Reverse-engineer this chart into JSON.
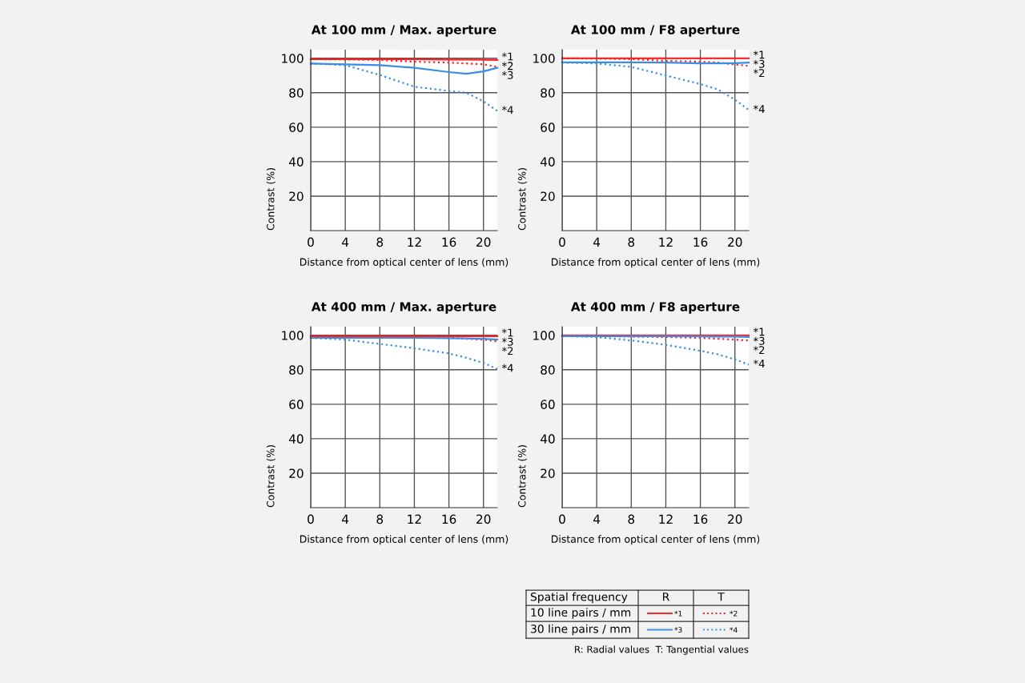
{
  "chart_data": [
    {
      "type": "line",
      "title": "At 100 mm / Max. aperture",
      "xlabel": "Distance from optical center of lens (mm)",
      "ylabel": "Contrast (%)",
      "xlim": [
        0,
        21.6
      ],
      "ylim": [
        0,
        105
      ],
      "xticks": [
        0,
        4,
        8,
        12,
        16,
        20
      ],
      "yticks": [
        20,
        40,
        60,
        80,
        100
      ],
      "grid": true,
      "legend": "bottom right",
      "x": [
        0,
        4,
        8,
        12,
        16,
        18,
        20,
        21.6
      ],
      "series": [
        {
          "name": "*1",
          "color": "#ff1f1f",
          "line_style": "solid",
          "values": [
            99.5,
            99.5,
            99.5,
            99.5,
            99.3,
            99.2,
            99.1,
            99
          ]
        },
        {
          "name": "*2",
          "color": "#ff1f1f",
          "line_style": "dotted",
          "values": [
            99.5,
            99.3,
            99,
            98,
            97.5,
            97,
            96.5,
            95
          ]
        },
        {
          "name": "*3",
          "color": "#3a8ee6",
          "line_style": "solid",
          "values": [
            96.9,
            96.5,
            96,
            94.5,
            92,
            91,
            92.4,
            94.5
          ]
        },
        {
          "name": "*4",
          "color": "#3a8ee6",
          "line_style": "dotted",
          "values": [
            97,
            96,
            90.3,
            83.5,
            81,
            80,
            75,
            69.5
          ]
        }
      ]
    },
    {
      "type": "line",
      "title": "At 100 mm / F8 aperture",
      "xlabel": "Distance from optical center of lens (mm)",
      "ylabel": "Contrast (%)",
      "xlim": [
        0,
        21.6
      ],
      "ylim": [
        0,
        105
      ],
      "xticks": [
        0,
        4,
        8,
        12,
        16,
        20
      ],
      "yticks": [
        20,
        40,
        60,
        80,
        100
      ],
      "grid": true,
      "legend": false,
      "x": [
        0,
        4,
        8,
        12,
        16,
        18,
        20,
        21.6
      ],
      "series": [
        {
          "name": "*1",
          "color": "#ff1f1f",
          "line_style": "solid",
          "values": [
            100,
            100,
            100,
            100,
            100,
            100,
            100,
            100
          ]
        },
        {
          "name": "*2",
          "color": "#ff1f1f",
          "line_style": "dotted",
          "values": [
            100,
            99.8,
            99.5,
            98.5,
            98,
            97.5,
            96.5,
            95.5
          ]
        },
        {
          "name": "*3",
          "color": "#3a8ee6",
          "line_style": "solid",
          "values": [
            97.6,
            97.6,
            97.6,
            97.5,
            97,
            97,
            97.2,
            97.5
          ]
        },
        {
          "name": "*4",
          "color": "#3a8ee6",
          "line_style": "dotted",
          "values": [
            97.5,
            97,
            95,
            90,
            85,
            82,
            76,
            70
          ]
        }
      ]
    },
    {
      "type": "line",
      "title": "At 400 mm / Max. aperture",
      "xlabel": "Distance from optical center of lens (mm)",
      "ylabel": "Contrast (%)",
      "xlim": [
        0,
        21.6
      ],
      "ylim": [
        0,
        105
      ],
      "xticks": [
        0,
        4,
        8,
        12,
        16,
        20
      ],
      "yticks": [
        20,
        40,
        60,
        80,
        100
      ],
      "grid": true,
      "legend": false,
      "x": [
        0,
        4,
        8,
        12,
        16,
        18,
        20,
        21.6
      ],
      "series": [
        {
          "name": "*1",
          "color": "#ff1f1f",
          "line_style": "solid",
          "values": [
            99.5,
            99.5,
            99.5,
            99.5,
            99.5,
            99.5,
            99.5,
            99.5
          ]
        },
        {
          "name": "*2",
          "color": "#ff1f1f",
          "line_style": "dotted",
          "values": [
            99,
            99,
            99,
            99,
            98.5,
            98,
            97.5,
            96.5
          ]
        },
        {
          "name": "*3",
          "color": "#3a8ee6",
          "line_style": "solid",
          "values": [
            98.5,
            98.5,
            98.5,
            98.5,
            98.3,
            98.2,
            98,
            97.5
          ]
        },
        {
          "name": "*4",
          "color": "#3a8ee6",
          "line_style": "dotted",
          "values": [
            98.5,
            97.5,
            95,
            92.5,
            89.5,
            87,
            84,
            80.5
          ]
        }
      ]
    },
    {
      "type": "line",
      "title": "At 400 mm / F8 aperture",
      "xlabel": "Distance from optical center of lens (mm)",
      "ylabel": "Contrast (%)",
      "xlim": [
        0,
        21.6
      ],
      "ylim": [
        0,
        105
      ],
      "xticks": [
        0,
        4,
        8,
        12,
        16,
        20
      ],
      "yticks": [
        20,
        40,
        60,
        80,
        100
      ],
      "grid": true,
      "legend": false,
      "x": [
        0,
        4,
        8,
        12,
        16,
        18,
        20,
        21.6
      ],
      "series": [
        {
          "name": "*1",
          "color": "#ff1f1f",
          "line_style": "solid",
          "values": [
            100,
            100,
            100,
            100,
            100,
            100,
            100,
            100
          ]
        },
        {
          "name": "*2",
          "color": "#ff1f1f",
          "line_style": "dotted",
          "values": [
            99.5,
            99.5,
            99.2,
            99,
            98.5,
            98,
            97.5,
            97
          ]
        },
        {
          "name": "*3",
          "color": "#3a8ee6",
          "line_style": "solid",
          "values": [
            99.5,
            99.5,
            99.5,
            99.5,
            99.4,
            99.3,
            99.2,
            99
          ]
        },
        {
          "name": "*4",
          "color": "#3a8ee6",
          "line_style": "dotted",
          "values": [
            99.5,
            99,
            97,
            94.5,
            91,
            89,
            86,
            83
          ]
        }
      ]
    },
    {
      "type": "other",
      "annotations": [
        "Spatial frequency",
        "R",
        "T",
        "10 line pairs / mm",
        "30 line pairs / mm",
        "R: Radial values  T: Tangential values"
      ]
    }
  ]
}
